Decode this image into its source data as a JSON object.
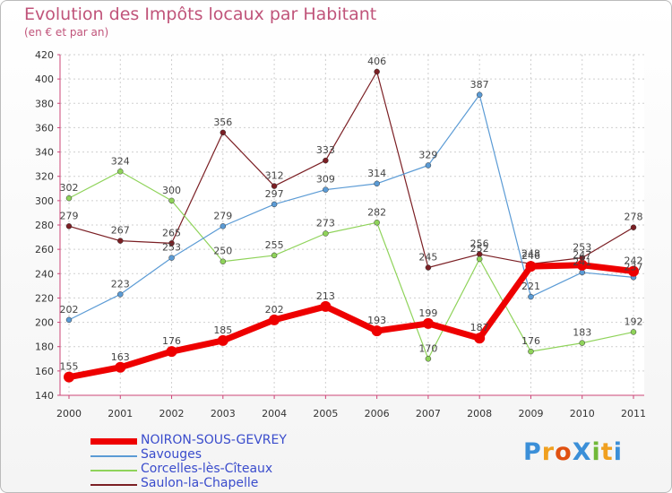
{
  "header": {
    "title": "Evolution des Impôts locaux par Habitant",
    "subtitle": "(en € et par an)"
  },
  "logo": {
    "text": "ProXiti"
  },
  "chart_data": {
    "type": "line",
    "title": "Evolution des Impôts locaux par Habitant",
    "subtitle": "(en € et par an)",
    "x": [
      "2000",
      "2001",
      "2002",
      "2003",
      "2004",
      "2005",
      "2006",
      "2007",
      "2008",
      "2009",
      "2010",
      "2011"
    ],
    "ylim": [
      140,
      420
    ],
    "yticks": [
      140,
      160,
      180,
      200,
      220,
      240,
      260,
      280,
      300,
      320,
      340,
      360,
      380,
      400,
      420
    ],
    "grid": true,
    "legend_position": "bottom",
    "series": [
      {
        "name": "NOIRON-SOUS-GEVREY",
        "color": "#ee0000",
        "width": 7,
        "values": [
          155,
          163,
          176,
          185,
          202,
          213,
          193,
          199,
          187,
          246,
          247,
          242
        ],
        "labels": [
          "155",
          "163",
          "176",
          "185",
          "202",
          "213",
          "193",
          "199",
          "187",
          "246",
          "247",
          "242"
        ]
      },
      {
        "name": "Savouges",
        "color": "#5b9bd5",
        "width": 1.2,
        "values": [
          202,
          223,
          253,
          279,
          297,
          309,
          314,
          329,
          387,
          221,
          241,
          237
        ],
        "labels": [
          "202",
          "223",
          "253",
          "279",
          "297",
          "309",
          "314",
          "329",
          "387",
          "221",
          "241",
          "237"
        ]
      },
      {
        "name": "Corcelles-lès-Cîteaux",
        "color": "#8fd35a",
        "width": 1.2,
        "values": [
          302,
          324,
          300,
          250,
          255,
          273,
          282,
          170,
          252,
          176,
          183,
          192
        ],
        "labels": [
          "302",
          "324",
          "300",
          "250",
          "255",
          "273",
          "282",
          "170",
          "252",
          "176",
          "183",
          "192"
        ]
      },
      {
        "name": "Saulon-la-Chapelle",
        "color": "#7b1f24",
        "width": 1.2,
        "values": [
          279,
          267,
          265,
          356,
          312,
          333,
          406,
          245,
          256,
          248,
          253,
          278
        ],
        "labels": [
          "279",
          "267",
          "265",
          "356",
          "312",
          "333",
          "406",
          "245",
          "256",
          "248",
          "253",
          "278"
        ]
      }
    ]
  }
}
